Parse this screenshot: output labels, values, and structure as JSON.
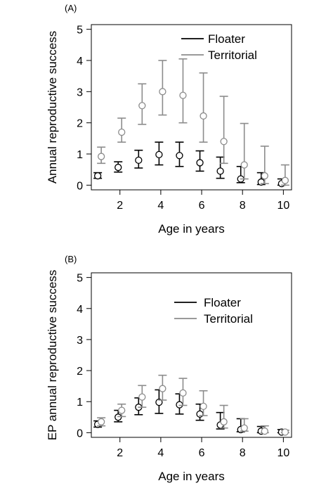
{
  "chart_data": [
    {
      "panel_label": "(A)",
      "type": "scatter",
      "xlabel": "Age in years",
      "ylabel": "Annual reproductive success",
      "xlim": [
        0.6,
        10.4
      ],
      "ylim": [
        -0.15,
        5.15
      ],
      "x_ticks": [
        2,
        4,
        6,
        8,
        10
      ],
      "y_ticks": [
        0,
        1,
        2,
        3,
        4,
        5
      ],
      "grid": false,
      "legend_position": "top-right",
      "series": [
        {
          "name": "Floater",
          "color": "#000000",
          "marker": "open-circle",
          "error_bars": true,
          "points": [
            {
              "x": 1,
              "y": 0.3,
              "lo": 0.22,
              "hi": 0.4
            },
            {
              "x": 2,
              "y": 0.57,
              "lo": 0.42,
              "hi": 0.75
            },
            {
              "x": 3,
              "y": 0.8,
              "lo": 0.55,
              "hi": 1.12
            },
            {
              "x": 4,
              "y": 0.98,
              "lo": 0.65,
              "hi": 1.38
            },
            {
              "x": 5,
              "y": 0.95,
              "lo": 0.6,
              "hi": 1.38
            },
            {
              "x": 6,
              "y": 0.72,
              "lo": 0.45,
              "hi": 1.1
            },
            {
              "x": 7,
              "y": 0.45,
              "lo": 0.22,
              "hi": 0.9
            },
            {
              "x": 8,
              "y": 0.2,
              "lo": 0.08,
              "hi": 0.6
            },
            {
              "x": 9,
              "y": 0.1,
              "lo": 0.02,
              "hi": 0.4
            },
            {
              "x": 10,
              "y": 0.05,
              "lo": 0.0,
              "hi": 0.2
            }
          ]
        },
        {
          "name": "Territorial",
          "color": "#8c8c8c",
          "marker": "open-circle",
          "error_bars": true,
          "points": [
            {
              "x": 1,
              "y": 0.92,
              "lo": 0.7,
              "hi": 1.22
            },
            {
              "x": 2,
              "y": 1.7,
              "lo": 1.38,
              "hi": 2.15
            },
            {
              "x": 3,
              "y": 2.55,
              "lo": 1.95,
              "hi": 3.25
            },
            {
              "x": 4,
              "y": 3.0,
              "lo": 2.25,
              "hi": 4.0
            },
            {
              "x": 5,
              "y": 2.88,
              "lo": 2.0,
              "hi": 4.05
            },
            {
              "x": 6,
              "y": 2.22,
              "lo": 1.38,
              "hi": 3.6
            },
            {
              "x": 7,
              "y": 1.4,
              "lo": 0.7,
              "hi": 2.85
            },
            {
              "x": 8,
              "y": 0.65,
              "lo": 0.2,
              "hi": 1.98
            },
            {
              "x": 9,
              "y": 0.3,
              "lo": 0.05,
              "hi": 1.25
            },
            {
              "x": 10,
              "y": 0.15,
              "lo": 0.0,
              "hi": 0.65
            }
          ]
        }
      ]
    },
    {
      "panel_label": "(B)",
      "type": "scatter",
      "xlabel": "Age in years",
      "ylabel": "EP annual reproductive success",
      "xlim": [
        0.6,
        10.4
      ],
      "ylim": [
        -0.15,
        5.15
      ],
      "x_ticks": [
        2,
        4,
        6,
        8,
        10
      ],
      "y_ticks": [
        0,
        1,
        2,
        3,
        4,
        5
      ],
      "grid": false,
      "legend_position": "top-right",
      "series": [
        {
          "name": "Floater",
          "color": "#000000",
          "marker": "open-circle",
          "error_bars": true,
          "points": [
            {
              "x": 1,
              "y": 0.27,
              "lo": 0.18,
              "hi": 0.38
            },
            {
              "x": 2,
              "y": 0.5,
              "lo": 0.35,
              "hi": 0.72
            },
            {
              "x": 3,
              "y": 0.82,
              "lo": 0.58,
              "hi": 1.12
            },
            {
              "x": 4,
              "y": 0.98,
              "lo": 0.62,
              "hi": 1.38
            },
            {
              "x": 5,
              "y": 0.9,
              "lo": 0.6,
              "hi": 1.25
            },
            {
              "x": 6,
              "y": 0.6,
              "lo": 0.4,
              "hi": 0.92
            },
            {
              "x": 7,
              "y": 0.25,
              "lo": 0.12,
              "hi": 0.65
            },
            {
              "x": 8,
              "y": 0.1,
              "lo": 0.03,
              "hi": 0.45
            },
            {
              "x": 9,
              "y": 0.05,
              "lo": 0.0,
              "hi": 0.2
            },
            {
              "x": 10,
              "y": 0.02,
              "lo": 0.0,
              "hi": 0.1
            }
          ]
        },
        {
          "name": "Territorial",
          "color": "#8c8c8c",
          "marker": "open-circle",
          "error_bars": true,
          "points": [
            {
              "x": 1,
              "y": 0.35,
              "lo": 0.22,
              "hi": 0.48
            },
            {
              "x": 2,
              "y": 0.72,
              "lo": 0.52,
              "hi": 0.92
            },
            {
              "x": 3,
              "y": 1.15,
              "lo": 0.82,
              "hi": 1.52
            },
            {
              "x": 4,
              "y": 1.42,
              "lo": 1.05,
              "hi": 1.85
            },
            {
              "x": 5,
              "y": 1.28,
              "lo": 0.88,
              "hi": 1.75
            },
            {
              "x": 6,
              "y": 0.85,
              "lo": 0.55,
              "hi": 1.35
            },
            {
              "x": 7,
              "y": 0.35,
              "lo": 0.15,
              "hi": 0.88
            },
            {
              "x": 8,
              "y": 0.15,
              "lo": 0.05,
              "hi": 0.45
            },
            {
              "x": 9,
              "y": 0.05,
              "lo": 0.0,
              "hi": 0.22
            },
            {
              "x": 10,
              "y": 0.02,
              "lo": 0.0,
              "hi": 0.08
            }
          ]
        }
      ]
    }
  ]
}
